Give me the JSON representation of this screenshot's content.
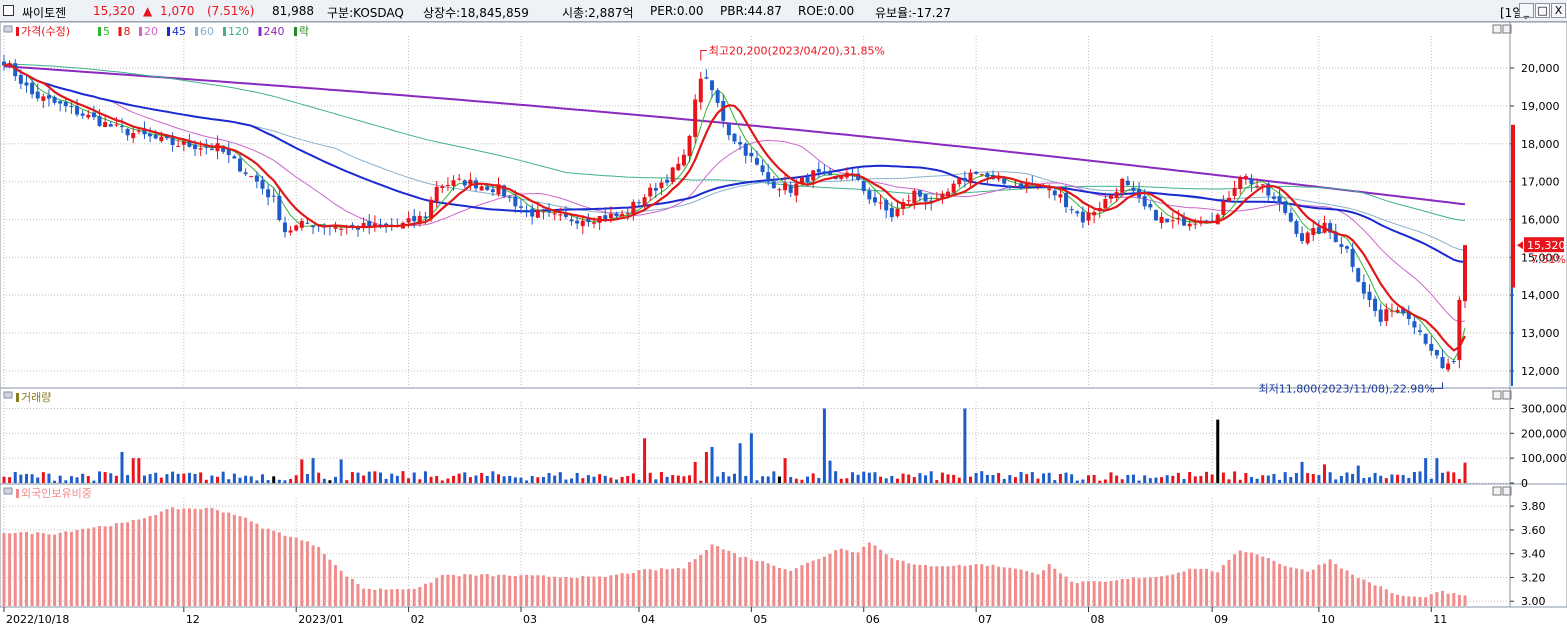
{
  "header": {
    "name": "싸이토젠",
    "price": "15,320",
    "change_arrow": "▲",
    "change": "1,070",
    "change_pct": "(7.51%)",
    "volume": "81,988",
    "market": "구분:KOSDAQ",
    "shares": "상장수:18,845,859",
    "mcap": "시총:2,887억",
    "per": "PER:0.00",
    "pbr": "PBR:44.87",
    "roe": "ROE:0.00",
    "retention": "유보율:-17.27",
    "period": "[1일]",
    "min_glyph": "_",
    "max_glyph": "□",
    "close_glyph": "X"
  },
  "colors": {
    "up": "#e8141c",
    "down": "#1d5cc9",
    "ma5": "#33b233",
    "ma8": "#e01818",
    "ma20": "#cc66cc",
    "ma45": "#1a2ad0",
    "ma60": "#8ab0cc",
    "ma120": "#40b090",
    "ma240": "#8a2ac0",
    "volume_label": "#8a7a20",
    "foreign": "#f08c8c",
    "grid": "#bfbfbf"
  },
  "chart_data": [
    {
      "type": "candlestick",
      "panel": "price",
      "legend": [
        {
          "label": "가격(수정)",
          "color": "#e8141c"
        },
        {
          "label": "5",
          "color": "#33b233"
        },
        {
          "label": "8",
          "color": "#e01818"
        },
        {
          "label": "20",
          "color": "#cc66cc"
        },
        {
          "label": "45",
          "color": "#1a2ad0"
        },
        {
          "label": "60",
          "color": "#8ab0cc"
        },
        {
          "label": "120",
          "color": "#40b090"
        },
        {
          "label": "240",
          "color": "#8a2ac0"
        },
        {
          "label": "락",
          "color": "#2a8a2a"
        }
      ],
      "y_ticks": [
        "20,000",
        "19,000",
        "18,000",
        "17,000",
        "16,000",
        "15,000",
        "14,000",
        "13,000",
        "12,000"
      ],
      "ylim": [
        11600,
        20900
      ],
      "x_ticks": [
        "2022/10/18",
        "12",
        "2023/01",
        "02",
        "03",
        "04",
        "05",
        "06",
        "07",
        "08",
        "09",
        "10",
        "11"
      ],
      "x_tick_index": [
        0,
        32,
        52,
        72,
        92,
        113,
        133,
        153,
        173,
        193,
        215,
        234,
        254
      ],
      "annotations": {
        "high": "최고20,200(2023/04/20),31.85%",
        "low": "최저11,800(2023/11/08),22.98%",
        "last_price": "15,320",
        "last_pct": "7.51%"
      },
      "close_keypoints": [
        [
          0,
          20200
        ],
        [
          5,
          19300
        ],
        [
          12,
          18900
        ],
        [
          20,
          18400
        ],
        [
          30,
          18000
        ],
        [
          38,
          17900
        ],
        [
          45,
          17000
        ],
        [
          48,
          16500
        ],
        [
          50,
          15700
        ],
        [
          54,
          15900
        ],
        [
          60,
          15800
        ],
        [
          70,
          15800
        ],
        [
          75,
          16100
        ],
        [
          77,
          16900
        ],
        [
          82,
          17000
        ],
        [
          88,
          16800
        ],
        [
          93,
          16200
        ],
        [
          100,
          16000
        ],
        [
          110,
          16100
        ],
        [
          113,
          16500
        ],
        [
          118,
          17100
        ],
        [
          121,
          17600
        ],
        [
          124,
          19800
        ],
        [
          126,
          19400
        ],
        [
          129,
          18300
        ],
        [
          132,
          17800
        ],
        [
          136,
          17000
        ],
        [
          140,
          16800
        ],
        [
          144,
          17200
        ],
        [
          148,
          17000
        ],
        [
          150,
          17300
        ],
        [
          154,
          16600
        ],
        [
          158,
          16100
        ],
        [
          162,
          16700
        ],
        [
          166,
          16400
        ],
        [
          170,
          17000
        ],
        [
          173,
          17300
        ],
        [
          176,
          17000
        ],
        [
          180,
          16900
        ],
        [
          184,
          16900
        ],
        [
          188,
          16600
        ],
        [
          192,
          16000
        ],
        [
          196,
          16500
        ],
        [
          199,
          17000
        ],
        [
          203,
          16300
        ],
        [
          207,
          15900
        ],
        [
          212,
          16000
        ],
        [
          216,
          16100
        ],
        [
          220,
          17200
        ],
        [
          224,
          16800
        ],
        [
          228,
          16200
        ],
        [
          231,
          15500
        ],
        [
          235,
          15800
        ],
        [
          239,
          15200
        ],
        [
          242,
          14100
        ],
        [
          245,
          13300
        ],
        [
          247,
          13700
        ],
        [
          250,
          13500
        ],
        [
          254,
          12600
        ],
        [
          256,
          12000
        ],
        [
          258,
          12250
        ],
        [
          260,
          15320
        ]
      ],
      "ma5_end": 13500,
      "ma8_end": 13100,
      "ma20_end": 14900,
      "ma45_end": 14800,
      "ma60_end": 15300,
      "ma120_end": 16000,
      "ma240_end": 16400,
      "ma240_start": 20050,
      "ma120_start": 20100,
      "ma45_start": 20000
    },
    {
      "type": "bar",
      "panel": "volume",
      "title": "거래량",
      "y_ticks": [
        "300,000",
        "200,000",
        "100,000",
        "0"
      ],
      "ylim": [
        0,
        330000
      ],
      "spikes": [
        [
          21,
          125000
        ],
        [
          23,
          100000
        ],
        [
          24,
          100000
        ],
        [
          53,
          95000
        ],
        [
          55,
          100000
        ],
        [
          60,
          95000
        ],
        [
          114,
          180000
        ],
        [
          123,
          85000
        ],
        [
          125,
          125000
        ],
        [
          126,
          145000
        ],
        [
          131,
          160000
        ],
        [
          133,
          200000
        ],
        [
          139,
          100000
        ],
        [
          146,
          300000
        ],
        [
          147,
          90000
        ],
        [
          171,
          300000
        ],
        [
          216,
          255000
        ],
        [
          231,
          85000
        ],
        [
          235,
          75000
        ],
        [
          241,
          70000
        ],
        [
          253,
          100000
        ],
        [
          255,
          100000
        ],
        [
          260,
          82000
        ]
      ],
      "base_level": 30000
    },
    {
      "type": "bar",
      "panel": "foreign",
      "title": "외국인보유비중",
      "y_ticks": [
        "3.80",
        "3.60",
        "3.40",
        "3.20",
        "3.00"
      ],
      "ylim": [
        2.96,
        3.86
      ],
      "keypoints": [
        [
          0,
          3.58
        ],
        [
          9,
          3.57
        ],
        [
          14,
          3.61
        ],
        [
          22,
          3.66
        ],
        [
          30,
          3.78
        ],
        [
          37,
          3.78
        ],
        [
          42,
          3.72
        ],
        [
          46,
          3.62
        ],
        [
          52,
          3.53
        ],
        [
          56,
          3.46
        ],
        [
          60,
          3.25
        ],
        [
          64,
          3.11
        ],
        [
          66,
          3.1
        ],
        [
          74,
          3.11
        ],
        [
          78,
          3.22
        ],
        [
          86,
          3.22
        ],
        [
          96,
          3.21
        ],
        [
          106,
          3.2
        ],
        [
          114,
          3.26
        ],
        [
          121,
          3.28
        ],
        [
          126,
          3.48
        ],
        [
          131,
          3.38
        ],
        [
          136,
          3.32
        ],
        [
          140,
          3.26
        ],
        [
          146,
          3.38
        ],
        [
          149,
          3.45
        ],
        [
          152,
          3.41
        ],
        [
          154,
          3.5
        ],
        [
          158,
          3.37
        ],
        [
          162,
          3.3
        ],
        [
          166,
          3.3
        ],
        [
          170,
          3.3
        ],
        [
          174,
          3.31
        ],
        [
          180,
          3.28
        ],
        [
          184,
          3.22
        ],
        [
          186,
          3.32
        ],
        [
          190,
          3.16
        ],
        [
          196,
          3.16
        ],
        [
          202,
          3.2
        ],
        [
          206,
          3.21
        ],
        [
          212,
          3.28
        ],
        [
          216,
          3.25
        ],
        [
          220,
          3.43
        ],
        [
          223,
          3.4
        ],
        [
          228,
          3.3
        ],
        [
          232,
          3.25
        ],
        [
          236,
          3.35
        ],
        [
          240,
          3.22
        ],
        [
          244,
          3.14
        ],
        [
          248,
          3.05
        ],
        [
          252,
          3.03
        ],
        [
          256,
          3.08
        ],
        [
          260,
          3.04
        ]
      ]
    }
  ]
}
